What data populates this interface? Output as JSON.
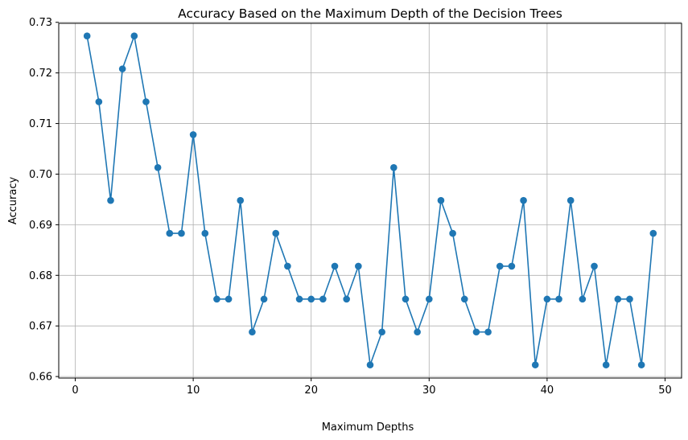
{
  "chart_data": {
    "type": "line",
    "title": "Accuracy Based on the Maximum Depth of the Decision Trees",
    "xlabel": "Maximum Depths",
    "ylabel": "Accuracy",
    "xlim": [
      -1.4,
      51.4
    ],
    "ylim": [
      0.6597,
      0.7298
    ],
    "xticks": [
      0,
      10,
      20,
      30,
      40,
      50
    ],
    "yticks": [
      0.66,
      0.67,
      0.68,
      0.69,
      0.7,
      0.71,
      0.72,
      0.73
    ],
    "xtick_labels": [
      "0",
      "10",
      "20",
      "30",
      "40",
      "50"
    ],
    "ytick_labels": [
      "0.66",
      "0.67",
      "0.68",
      "0.69",
      "0.70",
      "0.71",
      "0.72",
      "0.73"
    ],
    "grid": true,
    "series": [
      {
        "color": "#1f77b4",
        "marker": "circle",
        "x": [
          1,
          2,
          3,
          4,
          5,
          6,
          7,
          8,
          9,
          10,
          11,
          12,
          13,
          14,
          15,
          16,
          17,
          18,
          19,
          20,
          21,
          22,
          23,
          24,
          25,
          26,
          27,
          28,
          29,
          30,
          31,
          32,
          33,
          34,
          35,
          36,
          37,
          38,
          39,
          40,
          41,
          42,
          43,
          44,
          45,
          46,
          47,
          48,
          49
        ],
        "y": [
          0.7273,
          0.7143,
          0.6948,
          0.7208,
          0.7273,
          0.7143,
          0.7013,
          0.6883,
          0.6883,
          0.7078,
          0.6883,
          0.6753,
          0.6753,
          0.6948,
          0.6688,
          0.6753,
          0.6883,
          0.6818,
          0.6753,
          0.6753,
          0.6753,
          0.6818,
          0.6753,
          0.6818,
          0.6623,
          0.6688,
          0.7013,
          0.6753,
          0.6688,
          0.6753,
          0.6948,
          0.6883,
          0.6753,
          0.6688,
          0.6688,
          0.6818,
          0.6818,
          0.6948,
          0.6623,
          0.6753,
          0.6753,
          0.6948,
          0.6753,
          0.6818,
          0.6623,
          0.6753,
          0.6753,
          0.6623,
          0.6883
        ]
      }
    ]
  }
}
